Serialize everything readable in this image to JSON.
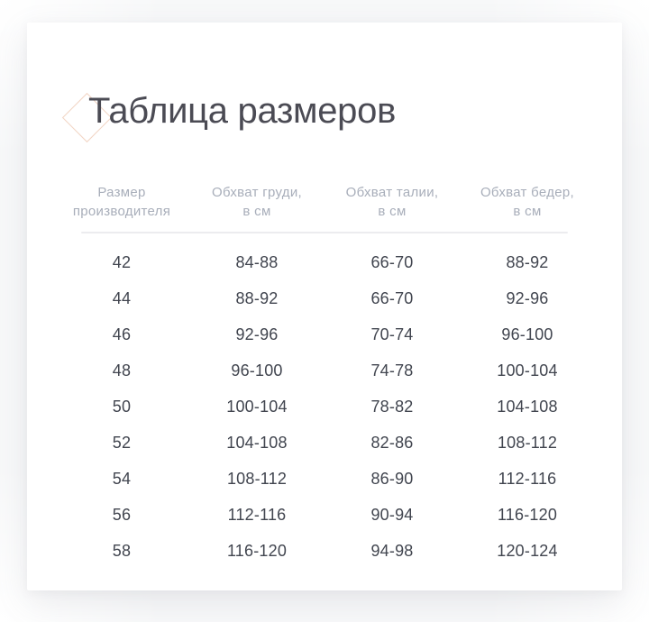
{
  "page": {
    "title": "Таблица размеров"
  },
  "table": {
    "columns": [
      {
        "line1": "Размер",
        "line2": "производителя"
      },
      {
        "line1": "Обхват груди,",
        "line2": "в см"
      },
      {
        "line1": "Обхват талии,",
        "line2": "в см"
      },
      {
        "line1": "Обхват бедер,",
        "line2": "в см"
      }
    ],
    "rows": [
      [
        "42",
        "84-88",
        "66-70",
        "88-92"
      ],
      [
        "44",
        "88-92",
        "66-70",
        "92-96"
      ],
      [
        "46",
        "92-96",
        "70-74",
        "96-100"
      ],
      [
        "48",
        "96-100",
        "74-78",
        "100-104"
      ],
      [
        "50",
        "100-104",
        "78-82",
        "104-108"
      ],
      [
        "52",
        "104-108",
        "82-86",
        "108-112"
      ],
      [
        "54",
        "108-112",
        "86-90",
        "112-116"
      ],
      [
        "56",
        "112-116",
        "90-94",
        "116-120"
      ],
      [
        "58",
        "116-120",
        "94-98",
        "120-124"
      ]
    ]
  },
  "colors": {
    "title": "#4b4b54",
    "body_text": "#41454f",
    "header_text": "#a8aeba",
    "divider": "#ececef",
    "diamond_outline": "#f2d4c3",
    "card_background": "#ffffff",
    "page_background": "#f7f8f9"
  }
}
